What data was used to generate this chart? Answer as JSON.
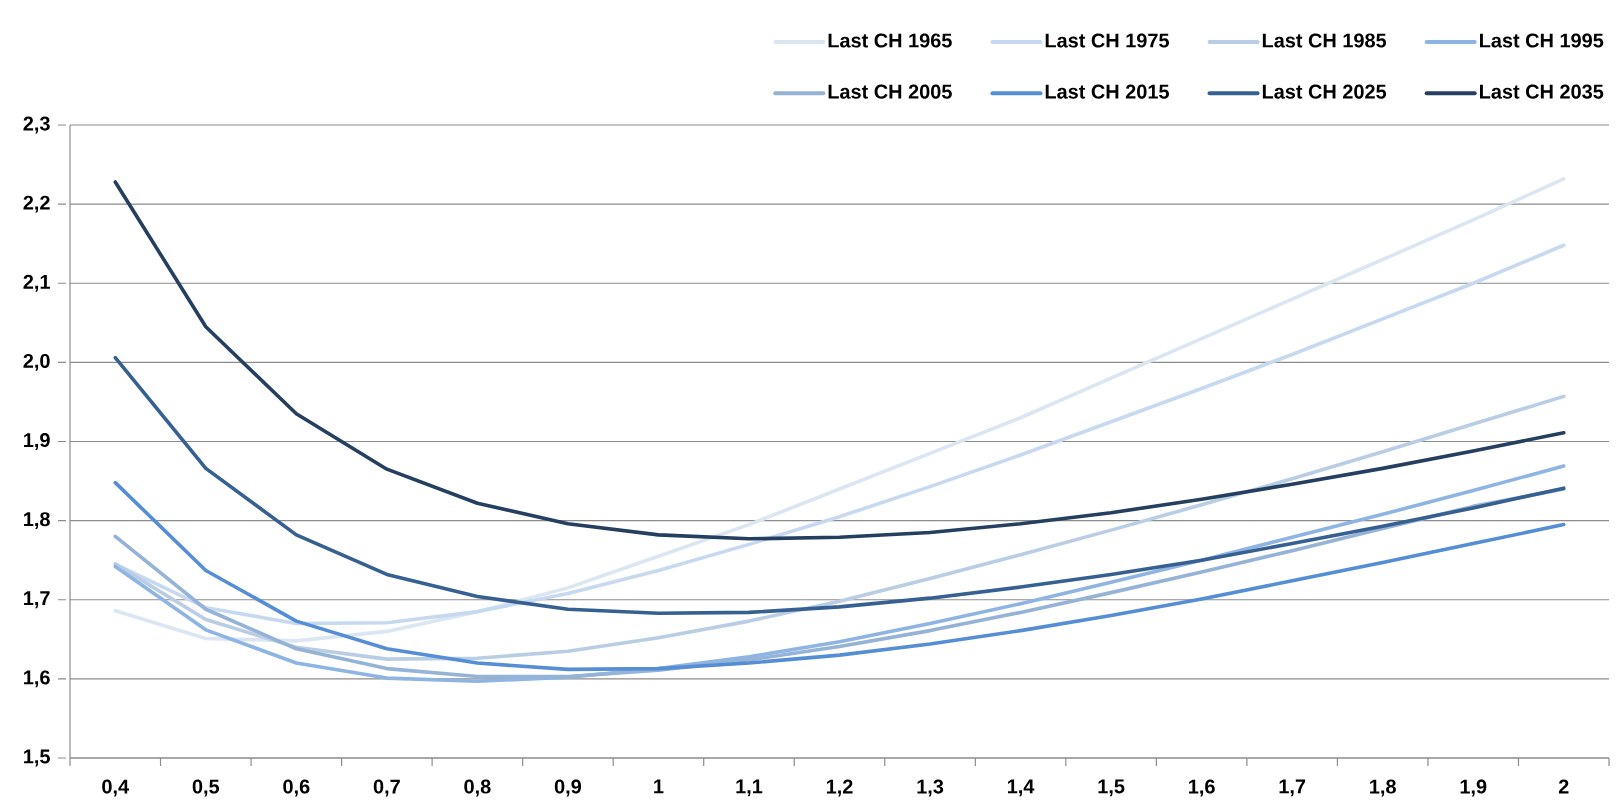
{
  "chart_data": {
    "type": "line",
    "categories": [
      "0,4",
      "0,5",
      "0,6",
      "0,7",
      "0,8",
      "0,9",
      "1",
      "1,1",
      "1,2",
      "1,3",
      "1,4",
      "1,5",
      "1,6",
      "1,7",
      "1,8",
      "1,9",
      "2"
    ],
    "series": [
      {
        "name": "Last CH 1965",
        "color": "#dce6f2",
        "values": [
          1.686,
          1.651,
          1.648,
          1.66,
          1.685,
          1.715,
          1.755,
          1.795,
          1.84,
          1.885,
          1.93,
          1.98,
          2.03,
          2.08,
          2.13,
          2.18,
          2.232
        ]
      },
      {
        "name": "Last CH 1975",
        "color": "#c6d9f1",
        "values": [
          1.745,
          1.69,
          1.67,
          1.671,
          1.685,
          1.708,
          1.737,
          1.77,
          1.805,
          1.843,
          1.883,
          1.925,
          1.967,
          2.01,
          2.055,
          2.1,
          2.148
        ]
      },
      {
        "name": "Last CH 1985",
        "color": "#b9cde5",
        "values": [
          1.745,
          1.675,
          1.64,
          1.625,
          1.626,
          1.635,
          1.652,
          1.673,
          1.698,
          1.727,
          1.757,
          1.788,
          1.82,
          1.853,
          1.887,
          1.922,
          1.957
        ]
      },
      {
        "name": "Last CH 1995",
        "color": "#8eb4e3",
        "values": [
          1.742,
          1.662,
          1.62,
          1.601,
          1.597,
          1.602,
          1.613,
          1.628,
          1.647,
          1.67,
          1.695,
          1.722,
          1.75,
          1.779,
          1.808,
          1.838,
          1.869
        ]
      },
      {
        "name": "Last CH 2005",
        "color": "#95b3d7",
        "values": [
          1.78,
          1.688,
          1.638,
          1.613,
          1.603,
          1.603,
          1.611,
          1.624,
          1.641,
          1.661,
          1.684,
          1.709,
          1.735,
          1.762,
          1.79,
          1.818,
          1.84
        ]
      },
      {
        "name": "Last CH 2015",
        "color": "#558ed5",
        "values": [
          1.848,
          1.737,
          1.673,
          1.638,
          1.62,
          1.612,
          1.613,
          1.62,
          1.63,
          1.644,
          1.661,
          1.68,
          1.701,
          1.724,
          1.747,
          1.771,
          1.795
        ]
      },
      {
        "name": "Last CH 2025",
        "color": "#376092",
        "values": [
          2.006,
          1.866,
          1.782,
          1.732,
          1.704,
          1.688,
          1.683,
          1.684,
          1.691,
          1.702,
          1.716,
          1.732,
          1.75,
          1.771,
          1.793,
          1.816,
          1.841
        ]
      },
      {
        "name": "Last CH 2035",
        "color": "#243f60",
        "values": [
          2.228,
          2.045,
          1.935,
          1.865,
          1.822,
          1.796,
          1.782,
          1.777,
          1.779,
          1.785,
          1.796,
          1.81,
          1.827,
          1.846,
          1.866,
          1.888,
          1.911
        ]
      }
    ],
    "ylim": [
      1.5,
      2.3
    ],
    "yticks": [
      {
        "value": 1.5,
        "label": "1,5"
      },
      {
        "value": 1.6,
        "label": "1,6"
      },
      {
        "value": 1.7,
        "label": "1,7"
      },
      {
        "value": 1.8,
        "label": "1,8"
      },
      {
        "value": 1.9,
        "label": "1,9"
      },
      {
        "value": 2.0,
        "label": "2,0"
      },
      {
        "value": 2.1,
        "label": "2,1"
      },
      {
        "value": 2.2,
        "label": "2,2"
      },
      {
        "value": 2.3,
        "label": "2,3"
      }
    ],
    "grid": "y",
    "legend": "top right",
    "marker": "none",
    "line_style": "solid"
  }
}
